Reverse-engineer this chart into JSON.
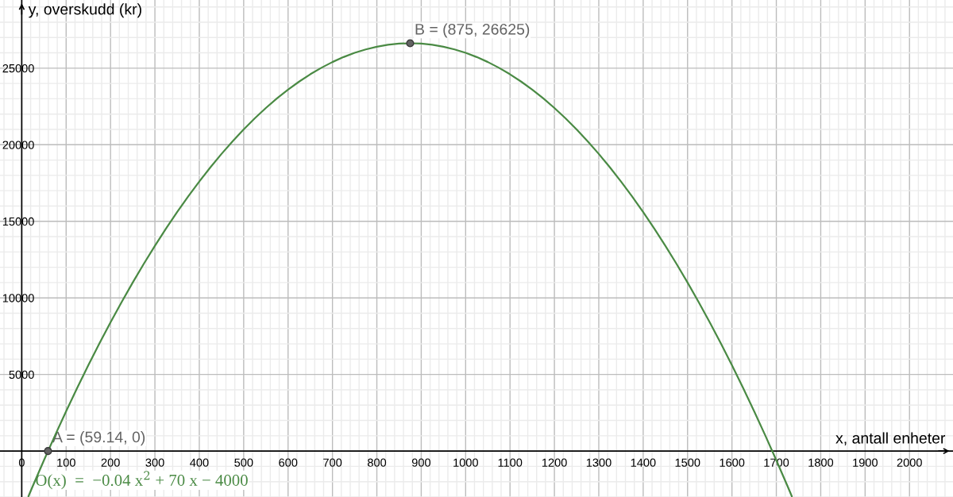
{
  "chart_data": {
    "type": "line",
    "xlabel": "x, antall enheter",
    "ylabel": "y, overskudd (kr)",
    "series": [
      {
        "color": "#4a8a44",
        "marker": "none",
        "line_style": "solid",
        "x": [
          15,
          25,
          50,
          75,
          100,
          125,
          150,
          175,
          200,
          225,
          250,
          275,
          300,
          325,
          350,
          375,
          400,
          425,
          450,
          475,
          500,
          525,
          550,
          575,
          600,
          625,
          650,
          675,
          700,
          725,
          750,
          775,
          800,
          825,
          850,
          875,
          900,
          925,
          950,
          975,
          1000,
          1025,
          1050,
          1075,
          1100,
          1125,
          1150,
          1175,
          1200,
          1225,
          1250,
          1275,
          1300,
          1325,
          1350,
          1375,
          1400,
          1425,
          1450,
          1475,
          1500,
          1525,
          1550,
          1575,
          1600,
          1625,
          1650,
          1675,
          1700,
          1725,
          1735
        ],
        "values": [
          -2959,
          -2275,
          -600,
          1025,
          2600,
          4125,
          5600,
          7025,
          8400,
          9725,
          11000,
          12225,
          13400,
          14525,
          15600,
          16625,
          17600,
          18525,
          19400,
          20225,
          21000,
          21725,
          22400,
          23025,
          23600,
          24125,
          24600,
          25025,
          25400,
          25725,
          26000,
          26225,
          26400,
          26525,
          26600,
          26625,
          26600,
          26525,
          26400,
          26225,
          26000,
          25725,
          25400,
          25025,
          24600,
          24125,
          23600,
          23025,
          22400,
          21725,
          21000,
          20225,
          19400,
          18525,
          17600,
          16625,
          15600,
          14525,
          13400,
          12225,
          11000,
          9725,
          8400,
          7025,
          5600,
          4125,
          2600,
          1025,
          -600,
          -2275,
          -2959
        ]
      },
      {
        "type": "scatter",
        "color": "#636363",
        "marker": "circle",
        "x": [
          59.14,
          875
        ],
        "values": [
          0,
          26625
        ]
      }
    ],
    "xlim": [
      -49,
      2098
    ],
    "ylim": [
      -3000,
      29450
    ],
    "xticks": [
      0,
      100,
      200,
      300,
      400,
      500,
      600,
      700,
      800,
      900,
      1000,
      1100,
      1200,
      1300,
      1400,
      1500,
      1600,
      1700,
      1800,
      1900,
      2000
    ],
    "yticks": [
      5000,
      10000,
      15000,
      20000,
      25000
    ],
    "grid": true,
    "annotations": [
      {
        "text": "A = (59.14, 0)",
        "x": 59.14,
        "y": 0
      },
      {
        "text": "B = (875, 26625)",
        "x": 875,
        "y": 26625
      },
      {
        "text": "O(x)  =  −0.04 x$^{2}$ + 70 x − 4000",
        "x": 23,
        "y": -2411
      }
    ]
  }
}
